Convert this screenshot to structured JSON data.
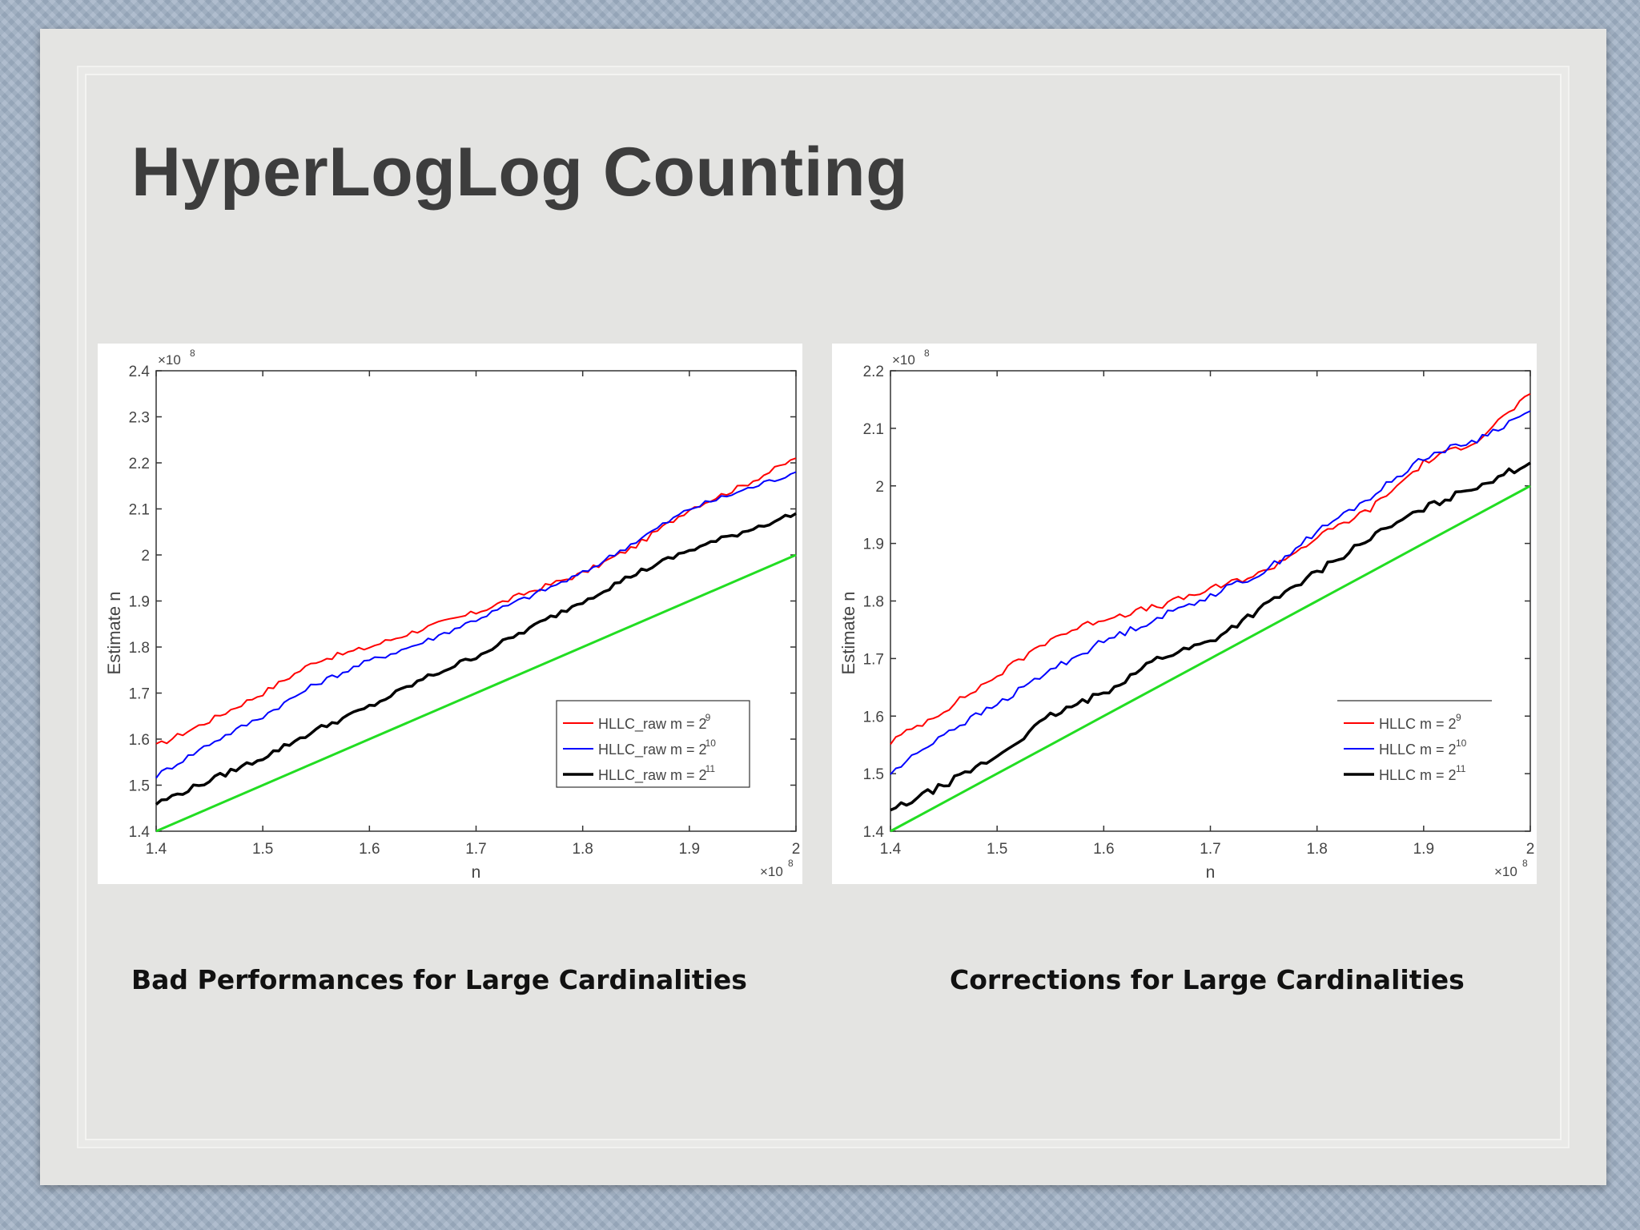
{
  "slide": {
    "title": "HyperLogLog Counting",
    "captions": [
      "Bad Performances for Large Cardinalities",
      "Corrections for Large Cardinalities"
    ]
  },
  "chart_data": [
    {
      "type": "line",
      "xlabel": "n",
      "ylabel": "Estimate n",
      "x_exponent_label": "×10",
      "x_exponent": "8",
      "y_exponent_label": "×10",
      "y_exponent": "8",
      "xlim": [
        1.4,
        2.0
      ],
      "ylim": [
        1.4,
        2.4
      ],
      "xticks": [
        "1.4",
        "1.5",
        "1.6",
        "1.7",
        "1.8",
        "1.9",
        "2"
      ],
      "yticks": [
        "1.4",
        "1.5",
        "1.6",
        "1.7",
        "1.8",
        "1.9",
        "2",
        "2.1",
        "2.2",
        "2.3",
        "2.4"
      ],
      "x": [
        1.4,
        1.45,
        1.5,
        1.55,
        1.6,
        1.65,
        1.7,
        1.75,
        1.8,
        1.85,
        1.9,
        1.95,
        2.0
      ],
      "series": [
        {
          "name": "HLLC_raw m = 2",
          "exp": "9",
          "color": "#ff0000",
          "width": 2,
          "values": [
            1.585,
            1.64,
            1.7,
            1.77,
            1.8,
            1.84,
            1.875,
            1.92,
            1.96,
            2.02,
            2.1,
            2.15,
            2.21
          ]
        },
        {
          "name": "HLLC_raw m = 2",
          "exp": "10",
          "color": "#0000ff",
          "width": 2,
          "values": [
            1.52,
            1.59,
            1.65,
            1.72,
            1.77,
            1.81,
            1.86,
            1.91,
            1.96,
            2.03,
            2.1,
            2.14,
            2.18
          ]
        },
        {
          "name": "HLLC_raw m = 2",
          "exp": "11",
          "color": "#000000",
          "width": 3.5,
          "values": [
            1.46,
            1.51,
            1.56,
            1.62,
            1.67,
            1.73,
            1.78,
            1.84,
            1.9,
            1.96,
            2.01,
            2.05,
            2.09
          ]
        },
        {
          "name": "",
          "exp": "",
          "color": "#22dd22",
          "width": 3,
          "values": [
            1.4,
            1.45,
            1.5,
            1.55,
            1.6,
            1.65,
            1.7,
            1.75,
            1.8,
            1.85,
            1.9,
            1.95,
            2.0
          ]
        }
      ],
      "legend": "bottom-right"
    },
    {
      "type": "line",
      "xlabel": "n",
      "ylabel": "Estimate n",
      "x_exponent_label": "×10",
      "x_exponent": "8",
      "y_exponent_label": "×10",
      "y_exponent": "8",
      "xlim": [
        1.4,
        2.0
      ],
      "ylim": [
        1.4,
        2.2
      ],
      "xticks": [
        "1.4",
        "1.5",
        "1.6",
        "1.7",
        "1.8",
        "1.9",
        "2"
      ],
      "yticks": [
        "1.4",
        "1.5",
        "1.6",
        "1.7",
        "1.8",
        "1.9",
        "2",
        "2.1",
        "2.2"
      ],
      "x": [
        1.4,
        1.45,
        1.5,
        1.55,
        1.6,
        1.65,
        1.7,
        1.75,
        1.8,
        1.85,
        1.9,
        1.95,
        2.0
      ],
      "series": [
        {
          "name": "HLLC m = 2",
          "exp": "9",
          "color": "#ff0000",
          "width": 2,
          "values": [
            1.555,
            1.61,
            1.67,
            1.735,
            1.77,
            1.79,
            1.82,
            1.85,
            1.91,
            1.96,
            2.04,
            2.08,
            2.16
          ]
        },
        {
          "name": "HLLC m = 2",
          "exp": "10",
          "color": "#0000ff",
          "width": 2,
          "values": [
            1.5,
            1.57,
            1.62,
            1.68,
            1.73,
            1.77,
            1.81,
            1.85,
            1.92,
            1.98,
            2.05,
            2.08,
            2.13
          ]
        },
        {
          "name": "HLLC m = 2",
          "exp": "11",
          "color": "#000000",
          "width": 3.5,
          "values": [
            1.435,
            1.48,
            1.53,
            1.6,
            1.64,
            1.7,
            1.73,
            1.79,
            1.85,
            1.91,
            1.96,
            2.0,
            2.04
          ]
        },
        {
          "name": "",
          "exp": "",
          "color": "#22dd22",
          "width": 3,
          "values": [
            1.4,
            1.45,
            1.5,
            1.55,
            1.6,
            1.65,
            1.7,
            1.75,
            1.8,
            1.85,
            1.9,
            1.95,
            2.0
          ]
        }
      ],
      "legend": "bottom-right"
    }
  ]
}
